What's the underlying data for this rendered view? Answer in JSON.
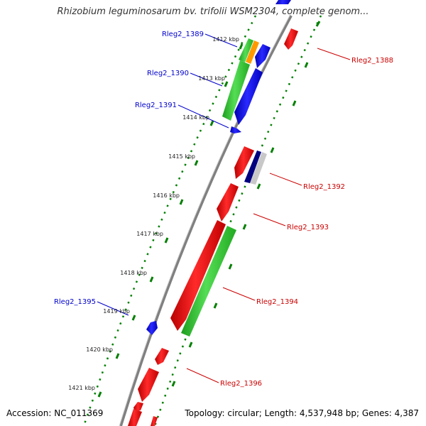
{
  "title": "Rhizobium leguminosarum bv. trifolii WSM2304, complete genom...",
  "accession": "Accession: NC_011369",
  "topology": "Topology: circular; Length: 4,537,948 bp; Genes: 4,387",
  "colors": {
    "backbone": "#808080",
    "tick": "#008000",
    "minus_label": "#0000cc",
    "plus_label": "#cc0000",
    "red_gene": "#ff0000",
    "blue_gene": "#0000ff",
    "green_gene": "#33cc33",
    "orange_gene": "#ff9900",
    "navy_gene": "#000080",
    "grey_gene": "#c0c0c0"
  },
  "kbp_ticks": [
    "1412 kbp",
    "1413 kbp",
    "1414 kbp",
    "1415 kbp",
    "1416 kbp",
    "1417 kbp",
    "1418 kbp",
    "1419 kbp",
    "1420 kbp",
    "1421 kbp"
  ],
  "labels": {
    "rleg2_1388": "Rleg2_1388",
    "rleg2_1389": "Rleg2_1389",
    "rleg2_1390": "Rleg2_1390",
    "rleg2_1391": "Rleg2_1391",
    "rleg2_1392": "Rleg2_1392",
    "rleg2_1393": "Rleg2_1393",
    "rleg2_1394": "Rleg2_1394",
    "rleg2_1395": "Rleg2_1395",
    "rleg2_1396": "Rleg2_1396"
  }
}
